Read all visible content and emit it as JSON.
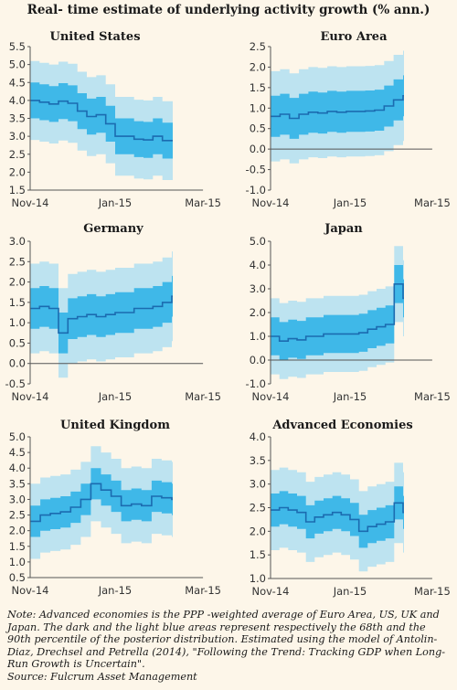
{
  "title": "Real- time estimate of underlying activity growth (% ann.)",
  "footnote": {
    "note": "Note: Advanced economies is the PPP -weighted average of Euro Area, US, UK and Japan. The dark and the light blue areas represent respectively the 68th and the 90th percentile of the posterior distribution. Estimated using the model of Antolin-Diaz, Drechsel and Petrella (2014), \"Following the Trend: Tracking GDP when Long-Run Growth is Uncertain\".",
    "source": "Source: Fulcrum Asset Management"
  },
  "colors": {
    "band68": "#3fb8e8",
    "band90": "#bde3f0",
    "median": "#1b6bb0",
    "background": "#fdf6e9"
  },
  "chart_data": [
    {
      "type": "area",
      "title": "United States",
      "x_ticks": [
        "Nov-14",
        "Jan-15",
        "Mar-15"
      ],
      "ylim": [
        1.5,
        5.5
      ],
      "y_ticks": [
        "1.5",
        "2.0",
        "2.5",
        "3.0",
        "3.5",
        "4.0",
        "4.5",
        "5.0",
        "5.5"
      ],
      "series": [
        {
          "name": "median",
          "values": [
            4.0,
            3.95,
            3.9,
            3.98,
            3.92,
            3.7,
            3.55,
            3.6,
            3.35,
            3.0,
            3.0,
            2.92,
            2.9,
            3.0,
            2.88,
            2.88
          ]
        },
        {
          "name": "68th lower",
          "values": [
            3.5,
            3.45,
            3.4,
            3.48,
            3.42,
            3.2,
            3.05,
            3.1,
            2.85,
            2.5,
            2.5,
            2.42,
            2.4,
            2.5,
            2.38,
            2.38
          ]
        },
        {
          "name": "68th upper",
          "values": [
            4.5,
            4.45,
            4.4,
            4.48,
            4.42,
            4.2,
            4.05,
            4.1,
            3.85,
            3.5,
            3.5,
            3.42,
            3.4,
            3.5,
            3.38,
            3.38
          ]
        },
        {
          "name": "90th lower",
          "values": [
            2.9,
            2.85,
            2.8,
            2.88,
            2.82,
            2.6,
            2.45,
            2.5,
            2.25,
            1.9,
            1.9,
            1.82,
            1.8,
            1.9,
            1.78,
            1.78
          ]
        },
        {
          "name": "90th upper",
          "values": [
            5.1,
            5.05,
            5.0,
            5.08,
            5.02,
            4.8,
            4.65,
            4.7,
            4.45,
            4.1,
            4.1,
            4.02,
            4.0,
            4.1,
            3.98,
            3.98
          ]
        }
      ]
    },
    {
      "type": "area",
      "title": "Euro Area",
      "x_ticks": [
        "Nov-14",
        "Jan-15",
        "Mar-15"
      ],
      "ylim": [
        -1.0,
        2.5
      ],
      "y_ticks": [
        "-1.0",
        "-0.5",
        "0.0",
        "0.5",
        "1.0",
        "1.5",
        "2.0",
        "2.5"
      ],
      "series": [
        {
          "name": "median",
          "values": [
            0.8,
            0.85,
            0.75,
            0.85,
            0.9,
            0.88,
            0.92,
            0.9,
            0.92,
            0.92,
            0.93,
            0.95,
            1.05,
            1.2,
            1.3
          ]
        },
        {
          "name": "68th lower",
          "values": [
            0.3,
            0.35,
            0.25,
            0.35,
            0.4,
            0.38,
            0.42,
            0.4,
            0.42,
            0.42,
            0.43,
            0.45,
            0.55,
            0.7,
            0.8
          ]
        },
        {
          "name": "68th upper",
          "values": [
            1.3,
            1.35,
            1.25,
            1.35,
            1.4,
            1.38,
            1.42,
            1.4,
            1.42,
            1.42,
            1.43,
            1.45,
            1.55,
            1.7,
            1.8
          ]
        },
        {
          "name": "90th lower",
          "values": [
            -0.3,
            -0.25,
            -0.35,
            -0.25,
            -0.2,
            -0.22,
            -0.18,
            -0.2,
            -0.18,
            -0.18,
            -0.17,
            -0.15,
            -0.05,
            0.1,
            0.2
          ]
        },
        {
          "name": "90th upper",
          "values": [
            1.9,
            1.95,
            1.85,
            1.95,
            2.0,
            1.98,
            2.02,
            2.0,
            2.02,
            2.02,
            2.03,
            2.05,
            2.15,
            2.3,
            2.4
          ]
        }
      ]
    },
    {
      "type": "area",
      "title": "Germany",
      "x_ticks": [
        "Nov-14",
        "Jan-15",
        "Mar-15"
      ],
      "ylim": [
        -0.5,
        3.0
      ],
      "y_ticks": [
        "-0.5",
        "0.0",
        "0.5",
        "1.0",
        "1.5",
        "2.0",
        "2.5",
        "3.0"
      ],
      "series": [
        {
          "name": "median",
          "values": [
            1.35,
            1.4,
            1.35,
            0.75,
            1.1,
            1.15,
            1.2,
            1.15,
            1.2,
            1.25,
            1.25,
            1.35,
            1.35,
            1.4,
            1.5,
            1.65
          ]
        },
        {
          "name": "68th lower",
          "values": [
            0.85,
            0.9,
            0.85,
            0.25,
            0.6,
            0.65,
            0.7,
            0.65,
            0.7,
            0.75,
            0.75,
            0.85,
            0.85,
            0.9,
            1.0,
            1.15
          ]
        },
        {
          "name": "68th upper",
          "values": [
            1.85,
            1.9,
            1.85,
            1.25,
            1.6,
            1.65,
            1.7,
            1.65,
            1.7,
            1.75,
            1.75,
            1.85,
            1.85,
            1.9,
            2.0,
            2.15
          ]
        },
        {
          "name": "90th lower",
          "values": [
            0.25,
            0.3,
            0.25,
            -0.35,
            0.0,
            0.05,
            0.1,
            0.05,
            0.1,
            0.15,
            0.15,
            0.25,
            0.25,
            0.3,
            0.4,
            0.55
          ]
        },
        {
          "name": "90th upper",
          "values": [
            2.45,
            2.5,
            2.45,
            1.85,
            2.2,
            2.25,
            2.3,
            2.25,
            2.3,
            2.35,
            2.35,
            2.45,
            2.45,
            2.5,
            2.6,
            2.75
          ]
        }
      ]
    },
    {
      "type": "area",
      "title": "Japan",
      "x_ticks": [
        "Nov-14",
        "Jan-15",
        "Mar-15"
      ],
      "ylim": [
        -1.0,
        5.0
      ],
      "y_ticks": [
        "-1.0",
        "0.0",
        "1.0",
        "2.0",
        "3.0",
        "4.0",
        "5.0"
      ],
      "series": [
        {
          "name": "median",
          "values": [
            1.0,
            0.8,
            0.9,
            0.85,
            1.0,
            1.0,
            1.1,
            1.1,
            1.1,
            1.1,
            1.15,
            1.3,
            1.4,
            1.5,
            3.2,
            2.6
          ]
        },
        {
          "name": "68th lower",
          "values": [
            0.2,
            0.0,
            0.1,
            0.05,
            0.2,
            0.2,
            0.3,
            0.3,
            0.3,
            0.3,
            0.35,
            0.5,
            0.6,
            0.7,
            2.4,
            1.8
          ]
        },
        {
          "name": "68th upper",
          "values": [
            1.8,
            1.6,
            1.7,
            1.65,
            1.8,
            1.8,
            1.9,
            1.9,
            1.9,
            1.9,
            1.95,
            2.1,
            2.2,
            2.3,
            4.0,
            3.4
          ]
        },
        {
          "name": "90th lower",
          "values": [
            -0.6,
            -0.8,
            -0.7,
            -0.75,
            -0.6,
            -0.6,
            -0.5,
            -0.5,
            -0.5,
            -0.5,
            -0.45,
            -0.3,
            -0.2,
            -0.1,
            1.6,
            1.0
          ]
        },
        {
          "name": "90th upper",
          "values": [
            2.6,
            2.4,
            2.5,
            2.45,
            2.6,
            2.6,
            2.7,
            2.7,
            2.7,
            2.7,
            2.75,
            2.9,
            3.0,
            3.1,
            4.8,
            4.2
          ]
        }
      ]
    },
    {
      "type": "area",
      "title": "United Kingdom",
      "x_ticks": [
        "Nov-14",
        "Jan-15",
        "Mar-15"
      ],
      "ylim": [
        0.5,
        5.0
      ],
      "y_ticks": [
        "0.5",
        "1.0",
        "1.5",
        "2.0",
        "2.5",
        "3.0",
        "3.5",
        "4.0",
        "4.5",
        "5.0"
      ],
      "series": [
        {
          "name": "median",
          "values": [
            2.3,
            2.5,
            2.55,
            2.6,
            2.75,
            3.0,
            3.5,
            3.3,
            3.1,
            2.8,
            2.85,
            2.8,
            3.1,
            3.05,
            3.0
          ]
        },
        {
          "name": "68th lower",
          "values": [
            1.8,
            2.0,
            2.05,
            2.1,
            2.25,
            2.5,
            3.0,
            2.8,
            2.6,
            2.3,
            2.35,
            2.3,
            2.6,
            2.55,
            2.5
          ]
        },
        {
          "name": "68th upper",
          "values": [
            2.8,
            3.0,
            3.05,
            3.1,
            3.25,
            3.5,
            4.0,
            3.8,
            3.6,
            3.3,
            3.35,
            3.3,
            3.6,
            3.55,
            3.5
          ]
        },
        {
          "name": "90th lower",
          "values": [
            1.1,
            1.3,
            1.35,
            1.4,
            1.55,
            1.8,
            2.3,
            2.1,
            1.9,
            1.6,
            1.65,
            1.6,
            1.9,
            1.85,
            1.8
          ]
        },
        {
          "name": "90th upper",
          "values": [
            3.5,
            3.7,
            3.75,
            3.8,
            3.95,
            4.2,
            4.7,
            4.5,
            4.3,
            4.0,
            4.05,
            4.0,
            4.3,
            4.25,
            4.2
          ]
        }
      ]
    },
    {
      "type": "area",
      "title": "Advanced Economies",
      "x_ticks": [
        "Nov-14",
        "Jan-15",
        "Mar-15"
      ],
      "ylim": [
        1.0,
        4.0
      ],
      "y_ticks": [
        "1.0",
        "1.5",
        "2.0",
        "2.5",
        "3.0",
        "3.5",
        "4.0"
      ],
      "series": [
        {
          "name": "median",
          "values": [
            2.45,
            2.5,
            2.45,
            2.4,
            2.2,
            2.3,
            2.35,
            2.4,
            2.35,
            2.25,
            2.0,
            2.1,
            2.15,
            2.2,
            2.6,
            2.4
          ]
        },
        {
          "name": "68th lower",
          "values": [
            2.1,
            2.15,
            2.1,
            2.05,
            1.85,
            1.95,
            2.0,
            2.05,
            2.0,
            1.9,
            1.65,
            1.75,
            1.8,
            1.85,
            2.25,
            2.05
          ]
        },
        {
          "name": "68th upper",
          "values": [
            2.8,
            2.85,
            2.8,
            2.75,
            2.55,
            2.65,
            2.7,
            2.75,
            2.7,
            2.6,
            2.35,
            2.45,
            2.5,
            2.55,
            2.95,
            2.75
          ]
        },
        {
          "name": "90th lower",
          "values": [
            1.6,
            1.65,
            1.6,
            1.55,
            1.35,
            1.45,
            1.5,
            1.55,
            1.5,
            1.4,
            1.15,
            1.25,
            1.3,
            1.35,
            1.75,
            1.55
          ]
        },
        {
          "name": "90th upper",
          "values": [
            3.3,
            3.35,
            3.3,
            3.25,
            3.05,
            3.15,
            3.2,
            3.25,
            3.2,
            3.1,
            2.85,
            2.95,
            3.0,
            3.05,
            3.45,
            3.25
          ]
        }
      ]
    }
  ]
}
